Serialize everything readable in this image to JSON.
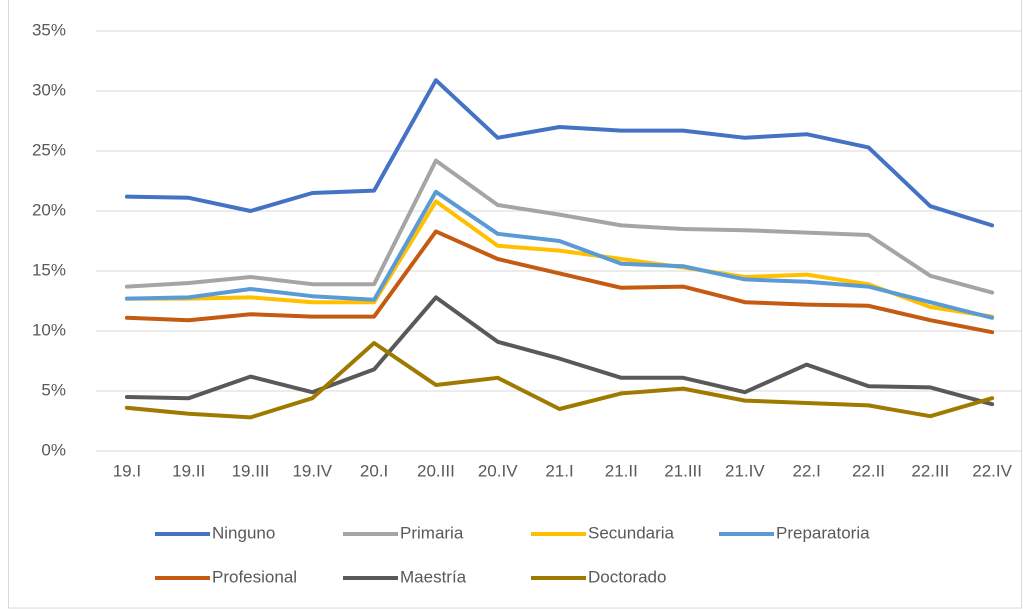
{
  "chart_data": {
    "type": "line",
    "categories": [
      "19.I",
      "19.II",
      "19.III",
      "19.IV",
      "20.I",
      "20.III",
      "20.IV",
      "21.I",
      "21.II",
      "21.III",
      "21.IV",
      "22.I",
      "22.II",
      "22.III",
      "22.IV"
    ],
    "series": [
      {
        "name": "Ninguno",
        "color": "#4472c4",
        "values": [
          21.2,
          21.1,
          20.0,
          21.5,
          21.7,
          30.9,
          26.1,
          27.0,
          26.7,
          26.7,
          26.1,
          26.4,
          25.3,
          20.4,
          18.8
        ]
      },
      {
        "name": "Primaria",
        "color": "#a5a5a5",
        "values": [
          13.7,
          14.0,
          14.5,
          13.9,
          13.9,
          24.2,
          20.5,
          19.7,
          18.8,
          18.5,
          18.4,
          18.2,
          18.0,
          14.6,
          13.2
        ]
      },
      {
        "name": "Secundaria",
        "color": "#ffc000",
        "values": [
          12.7,
          12.7,
          12.8,
          12.4,
          12.4,
          20.8,
          17.1,
          16.7,
          16.0,
          15.3,
          14.5,
          14.7,
          13.9,
          12.0,
          11.2
        ]
      },
      {
        "name": "Preparatoria",
        "color": "#5b9bd5",
        "values": [
          12.7,
          12.8,
          13.5,
          12.9,
          12.6,
          21.6,
          18.1,
          17.5,
          15.6,
          15.4,
          14.3,
          14.1,
          13.7,
          12.4,
          11.1
        ]
      },
      {
        "name": "Profesional",
        "color": "#c55a11",
        "values": [
          11.1,
          10.9,
          11.4,
          11.2,
          11.2,
          18.3,
          16.0,
          14.8,
          13.6,
          13.7,
          12.4,
          12.2,
          12.1,
          10.9,
          9.9
        ]
      },
      {
        "name": "Maestría",
        "color": "#595959",
        "values": [
          4.5,
          4.4,
          6.2,
          4.9,
          6.8,
          12.8,
          9.1,
          7.7,
          6.1,
          6.1,
          4.9,
          7.2,
          5.4,
          5.3,
          3.9
        ]
      },
      {
        "name": "Doctorado",
        "color": "#9e7b00",
        "values": [
          3.6,
          3.1,
          2.8,
          4.4,
          9.0,
          5.5,
          6.1,
          3.5,
          4.8,
          5.2,
          4.2,
          4.0,
          3.8,
          2.9,
          4.4
        ]
      }
    ],
    "ylim": [
      0,
      35
    ],
    "yticks": [
      {
        "value": 0,
        "label": "0%"
      },
      {
        "value": 5,
        "label": "5%"
      },
      {
        "value": 10,
        "label": "10%"
      },
      {
        "value": 15,
        "label": "15%"
      },
      {
        "value": 20,
        "label": "20%"
      },
      {
        "value": 25,
        "label": "25%"
      },
      {
        "value": 30,
        "label": "30%"
      },
      {
        "value": 35,
        "label": "35%"
      }
    ],
    "grid": true,
    "legend": "bottom"
  }
}
